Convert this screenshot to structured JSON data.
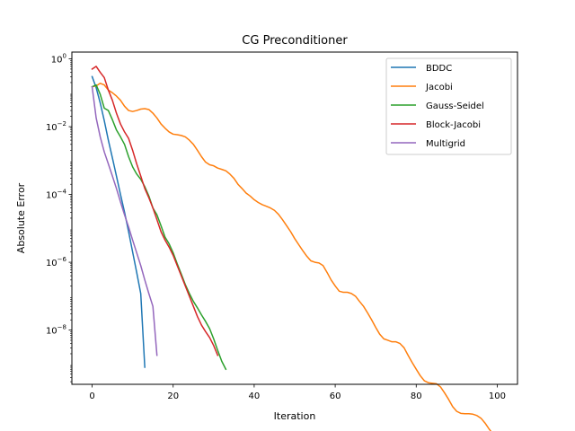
{
  "chart_data": {
    "type": "line",
    "title": "CG Preconditioner",
    "xlabel": "Iteration",
    "ylabel": "Absolute Error",
    "yscale": "log",
    "xlim": [
      -5,
      105
    ],
    "ylim_exp": [
      -9.6,
      0.2
    ],
    "x_ticks": [
      0,
      20,
      40,
      60,
      80,
      100
    ],
    "y_tick_exponents": [
      0,
      -2,
      -4,
      -6,
      -8
    ],
    "y_tick_base": "10",
    "grid": false,
    "legend_position": "top-right",
    "series": [
      {
        "name": "BDDC",
        "color": "#1f77b4",
        "points": [
          [
            0,
            0.3
          ],
          [
            1,
            0.14
          ],
          [
            2,
            0.05
          ],
          [
            3,
            0.015
          ],
          [
            4,
            0.004
          ],
          [
            5,
            0.0012
          ],
          [
            6,
            0.00035
          ],
          [
            7,
            0.0001
          ],
          [
            8,
            3e-05
          ],
          [
            9,
            8e-06
          ],
          [
            10,
            2e-06
          ],
          [
            11,
            5e-07
          ],
          [
            12,
            1.2e-07
          ],
          [
            13,
            8e-10
          ]
        ]
      },
      {
        "name": "Jacobi",
        "color": "#ff7f0e",
        "points": [
          [
            0,
            0.15
          ],
          [
            1,
            0.16
          ],
          [
            2,
            0.19
          ],
          [
            3,
            0.17
          ],
          [
            4,
            0.12
          ],
          [
            5,
            0.1
          ],
          [
            6,
            0.08
          ],
          [
            7,
            0.06
          ],
          [
            8,
            0.04
          ],
          [
            9,
            0.03
          ],
          [
            10,
            0.028
          ],
          [
            11,
            0.03
          ],
          [
            12,
            0.033
          ],
          [
            13,
            0.034
          ],
          [
            14,
            0.032
          ],
          [
            15,
            0.025
          ],
          [
            16,
            0.018
          ],
          [
            17,
            0.012
          ],
          [
            18,
            0.009
          ],
          [
            19,
            0.007
          ],
          [
            20,
            0.006
          ],
          [
            21,
            0.0058
          ],
          [
            22,
            0.0055
          ],
          [
            23,
            0.005
          ],
          [
            24,
            0.004
          ],
          [
            25,
            0.003
          ],
          [
            26,
            0.002
          ],
          [
            27,
            0.0013
          ],
          [
            28,
            0.0009
          ],
          [
            29,
            0.00075
          ],
          [
            30,
            0.0007
          ],
          [
            31,
            0.0006
          ],
          [
            32,
            0.00055
          ],
          [
            33,
            0.0005
          ],
          [
            34,
            0.0004
          ],
          [
            35,
            0.0003
          ],
          [
            36,
            0.0002
          ],
          [
            37,
            0.00015
          ],
          [
            38,
            0.00011
          ],
          [
            39,
            9e-05
          ],
          [
            40,
            7e-05
          ],
          [
            41,
            5.8e-05
          ],
          [
            42,
            5e-05
          ],
          [
            43,
            4.5e-05
          ],
          [
            44,
            4e-05
          ],
          [
            45,
            3.4e-05
          ],
          [
            46,
            2.6e-05
          ],
          [
            47,
            1.8e-05
          ],
          [
            48,
            1.2e-05
          ],
          [
            49,
            8e-06
          ],
          [
            50,
            5e-06
          ],
          [
            51,
            3.3e-06
          ],
          [
            52,
            2.2e-06
          ],
          [
            53,
            1.5e-06
          ],
          [
            54,
            1.1e-06
          ],
          [
            55,
            1e-06
          ],
          [
            56,
            9.5e-07
          ],
          [
            57,
            8e-07
          ],
          [
            58,
            5e-07
          ],
          [
            59,
            3e-07
          ],
          [
            60,
            2e-07
          ],
          [
            61,
            1.4e-07
          ],
          [
            62,
            1.3e-07
          ],
          [
            63,
            1.3e-07
          ],
          [
            64,
            1.2e-07
          ],
          [
            65,
            1e-07
          ],
          [
            66,
            7e-08
          ],
          [
            67,
            5e-08
          ],
          [
            68,
            3.2e-08
          ],
          [
            69,
            2e-08
          ],
          [
            70,
            1.2e-08
          ],
          [
            71,
            7.5e-09
          ],
          [
            72,
            5.5e-09
          ],
          [
            73,
            5e-09
          ],
          [
            74,
            4.5e-09
          ],
          [
            75,
            4.5e-09
          ],
          [
            76,
            4e-09
          ],
          [
            77,
            3e-09
          ],
          [
            78,
            1.8e-09
          ],
          [
            79,
            1.1e-09
          ],
          [
            80,
            7e-10
          ],
          [
            81,
            4.5e-10
          ],
          [
            82,
            3.2e-10
          ],
          [
            83,
            2.8e-10
          ],
          [
            84,
            2.7e-10
          ],
          [
            85,
            2.6e-10
          ],
          [
            86,
            2.1e-10
          ],
          [
            87,
            1.4e-10
          ],
          [
            88,
            9e-11
          ],
          [
            89,
            5.5e-11
          ],
          [
            90,
            4e-11
          ],
          [
            91,
            3.5e-11
          ],
          [
            92,
            3.4e-11
          ],
          [
            93,
            3.4e-11
          ],
          [
            94,
            3.3e-11
          ],
          [
            95,
            3e-11
          ],
          [
            96,
            2.5e-11
          ],
          [
            97,
            1.8e-11
          ],
          [
            98,
            1.2e-11
          ],
          [
            99,
            8.5e-12
          ],
          [
            100,
            6e-12
          ]
        ]
      },
      {
        "name": "Gauss-Seidel",
        "color": "#2ca02c",
        "points": [
          [
            0,
            0.15
          ],
          [
            1,
            0.17
          ],
          [
            2,
            0.09
          ],
          [
            3,
            0.035
          ],
          [
            4,
            0.03
          ],
          [
            5,
            0.016
          ],
          [
            6,
            0.008
          ],
          [
            7,
            0.005
          ],
          [
            8,
            0.003
          ],
          [
            9,
            0.0013
          ],
          [
            10,
            0.00065
          ],
          [
            11,
            0.0004
          ],
          [
            12,
            0.00028
          ],
          [
            13,
            0.00017
          ],
          [
            14,
            9e-05
          ],
          [
            15,
            4e-05
          ],
          [
            16,
            2.5e-05
          ],
          [
            17,
            1.2e-05
          ],
          [
            18,
            5.5e-06
          ],
          [
            19,
            3.5e-06
          ],
          [
            20,
            1.9e-06
          ],
          [
            21,
            9e-07
          ],
          [
            22,
            4.5e-07
          ],
          [
            23,
            2.2e-07
          ],
          [
            24,
            1.2e-07
          ],
          [
            25,
            7e-08
          ],
          [
            26,
            4.5e-08
          ],
          [
            27,
            2.8e-08
          ],
          [
            28,
            1.8e-08
          ],
          [
            29,
            1.1e-08
          ],
          [
            30,
            5.5e-09
          ],
          [
            31,
            2.5e-09
          ],
          [
            32,
            1.2e-09
          ],
          [
            33,
            7e-10
          ]
        ]
      },
      {
        "name": "Block-Jacobi",
        "color": "#d62728",
        "points": [
          [
            0,
            0.5
          ],
          [
            1,
            0.6
          ],
          [
            2,
            0.4
          ],
          [
            3,
            0.28
          ],
          [
            4,
            0.12
          ],
          [
            5,
            0.06
          ],
          [
            6,
            0.025
          ],
          [
            7,
            0.012
          ],
          [
            8,
            0.007
          ],
          [
            9,
            0.0045
          ],
          [
            10,
            0.002
          ],
          [
            11,
            0.0008
          ],
          [
            12,
            0.00035
          ],
          [
            13,
            0.00015
          ],
          [
            14,
            8e-05
          ],
          [
            15,
            4e-05
          ],
          [
            16,
            1.8e-05
          ],
          [
            17,
            8e-06
          ],
          [
            18,
            4.5e-06
          ],
          [
            19,
            2.8e-06
          ],
          [
            20,
            1.6e-06
          ],
          [
            21,
            8e-07
          ],
          [
            22,
            4e-07
          ],
          [
            23,
            2e-07
          ],
          [
            24,
            1e-07
          ],
          [
            25,
            5e-08
          ],
          [
            26,
            2.5e-08
          ],
          [
            27,
            1.4e-08
          ],
          [
            28,
            9e-09
          ],
          [
            29,
            6e-09
          ],
          [
            30,
            3.5e-09
          ],
          [
            31,
            1.8e-09
          ]
        ]
      },
      {
        "name": "Multigrid",
        "color": "#9467bd",
        "points": [
          [
            0,
            0.15
          ],
          [
            1,
            0.018
          ],
          [
            2,
            0.005
          ],
          [
            3,
            0.0018
          ],
          [
            4,
            0.0008
          ],
          [
            5,
            0.00035
          ],
          [
            6,
            0.00015
          ],
          [
            7,
            6e-05
          ],
          [
            8,
            2.5e-05
          ],
          [
            9,
            1.1e-05
          ],
          [
            10,
            4.5e-06
          ],
          [
            11,
            1.9e-06
          ],
          [
            12,
            8e-07
          ],
          [
            13,
            3e-07
          ],
          [
            14,
            1.2e-07
          ],
          [
            15,
            5e-08
          ],
          [
            16,
            1.8e-09
          ]
        ]
      }
    ]
  }
}
